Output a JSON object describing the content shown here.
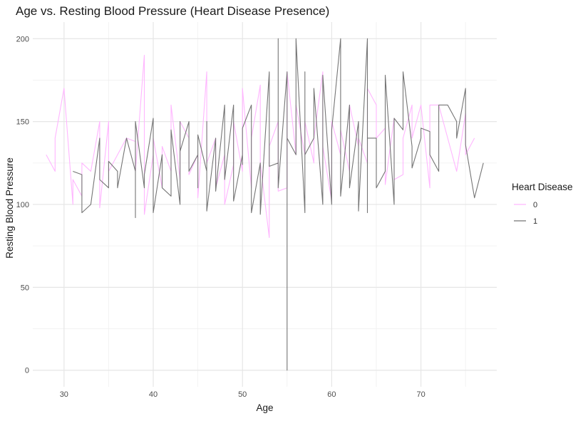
{
  "chart_data": {
    "type": "line",
    "title": "Age vs. Resting Blood Pressure (Heart Disease Presence)",
    "xlabel": "Age",
    "ylabel": "Resting Blood Pressure",
    "xlim": [
      26.5,
      78.5
    ],
    "ylim": [
      -10,
      210
    ],
    "xticks": [
      30,
      40,
      50,
      60,
      70
    ],
    "yticks": [
      0,
      50,
      100,
      150,
      200
    ],
    "grid": true,
    "legend": {
      "title": "Heart Disease",
      "position": "right"
    },
    "series": [
      {
        "name": "0",
        "color": "#ffb6ff",
        "points": [
          [
            28,
            130
          ],
          [
            29,
            120
          ],
          [
            29,
            140
          ],
          [
            30,
            170
          ],
          [
            31,
            100
          ],
          [
            31,
            115
          ],
          [
            32,
            105
          ],
          [
            32,
            125
          ],
          [
            33,
            120
          ],
          [
            34,
            150
          ],
          [
            34,
            98
          ],
          [
            35,
            150
          ],
          [
            35,
            120
          ],
          [
            36,
            130
          ],
          [
            37,
            140
          ],
          [
            38,
            138
          ],
          [
            38,
            120
          ],
          [
            39,
            190
          ],
          [
            39,
            94
          ],
          [
            40,
            130
          ],
          [
            40,
            140
          ],
          [
            41,
            110
          ],
          [
            41,
            135
          ],
          [
            42,
            120
          ],
          [
            42,
            160
          ],
          [
            43,
            115
          ],
          [
            43,
            150
          ],
          [
            44,
            140
          ],
          [
            44,
            118
          ],
          [
            45,
            130
          ],
          [
            45,
            104
          ],
          [
            46,
            180
          ],
          [
            46,
            125
          ],
          [
            47,
            140
          ],
          [
            47,
            110
          ],
          [
            48,
            130
          ],
          [
            48,
            100
          ],
          [
            49,
            124
          ],
          [
            49,
            150
          ],
          [
            50,
            120
          ],
          [
            50,
            170
          ],
          [
            51,
            110
          ],
          [
            51,
            140
          ],
          [
            52,
            172
          ],
          [
            52,
            125
          ],
          [
            53,
            80
          ],
          [
            53,
            135
          ],
          [
            54,
            150
          ],
          [
            54,
            108
          ],
          [
            55,
            110
          ],
          [
            55,
            180
          ],
          [
            56,
            130
          ],
          [
            56,
            160
          ],
          [
            57,
            130
          ],
          [
            57,
            150
          ],
          [
            58,
            125
          ],
          [
            58,
            140
          ],
          [
            59,
            180
          ],
          [
            59,
            135
          ],
          [
            60,
            102
          ],
          [
            60,
            150
          ],
          [
            61,
            130
          ],
          [
            61,
            145
          ],
          [
            62,
            120
          ],
          [
            62,
            160
          ],
          [
            63,
            135
          ],
          [
            63,
            140
          ],
          [
            64,
            125
          ],
          [
            64,
            170
          ],
          [
            65,
            160
          ],
          [
            65,
            140
          ],
          [
            66,
            146
          ],
          [
            66,
            112
          ],
          [
            67,
            152
          ],
          [
            67,
            115
          ],
          [
            68,
            118
          ],
          [
            68,
            140
          ],
          [
            69,
            160
          ],
          [
            69,
            140
          ],
          [
            70,
            160
          ],
          [
            71,
            110
          ],
          [
            71,
            160
          ],
          [
            72,
            160
          ],
          [
            74,
            120
          ],
          [
            75,
            155
          ],
          [
            75,
            130
          ],
          [
            76,
            140
          ]
        ]
      },
      {
        "name": "1",
        "color": "#757575",
        "points": [
          [
            31,
            120
          ],
          [
            32,
            118
          ],
          [
            32,
            95
          ],
          [
            33,
            100
          ],
          [
            34,
            140
          ],
          [
            34,
            115
          ],
          [
            35,
            110
          ],
          [
            35,
            126
          ],
          [
            36,
            120
          ],
          [
            36,
            110
          ],
          [
            37,
            140
          ],
          [
            38,
            120
          ],
          [
            38,
            92
          ],
          [
            38,
            150
          ],
          [
            39,
            110
          ],
          [
            39,
            118
          ],
          [
            40,
            152
          ],
          [
            40,
            95
          ],
          [
            41,
            130
          ],
          [
            41,
            110
          ],
          [
            42,
            105
          ],
          [
            42,
            145
          ],
          [
            43,
            100
          ],
          [
            43,
            150
          ],
          [
            43,
            132
          ],
          [
            44,
            150
          ],
          [
            44,
            120
          ],
          [
            45,
            130
          ],
          [
            45,
            110
          ],
          [
            45,
            142
          ],
          [
            46,
            120
          ],
          [
            46,
            150
          ],
          [
            46,
            96
          ],
          [
            47,
            140
          ],
          [
            47,
            108
          ],
          [
            48,
            160
          ],
          [
            48,
            115
          ],
          [
            49,
            160
          ],
          [
            49,
            102
          ],
          [
            50,
            130
          ],
          [
            50,
            124
          ],
          [
            50,
            146
          ],
          [
            51,
            160
          ],
          [
            51,
            95
          ],
          [
            52,
            125
          ],
          [
            52,
            94
          ],
          [
            53,
            180
          ],
          [
            53,
            123
          ],
          [
            54,
            125
          ],
          [
            54,
            200
          ],
          [
            54,
            110
          ],
          [
            55,
            180
          ],
          [
            55,
            0
          ],
          [
            55,
            140
          ],
          [
            56,
            130
          ],
          [
            56,
            200
          ],
          [
            57,
            95
          ],
          [
            57,
            180
          ],
          [
            57,
            130
          ],
          [
            58,
            140
          ],
          [
            58,
            170
          ],
          [
            59,
            100
          ],
          [
            59,
            178
          ],
          [
            60,
            100
          ],
          [
            60,
            145
          ],
          [
            61,
            200
          ],
          [
            61,
            105
          ],
          [
            62,
            160
          ],
          [
            62,
            110
          ],
          [
            63,
            150
          ],
          [
            63,
            96
          ],
          [
            64,
            200
          ],
          [
            64,
            95
          ],
          [
            64,
            140
          ],
          [
            65,
            140
          ],
          [
            65,
            110
          ],
          [
            66,
            120
          ],
          [
            66,
            178
          ],
          [
            67,
            100
          ],
          [
            67,
            152
          ],
          [
            68,
            145
          ],
          [
            68,
            180
          ],
          [
            69,
            135
          ],
          [
            69,
            122
          ],
          [
            70,
            140
          ],
          [
            70,
            146
          ],
          [
            71,
            144
          ],
          [
            71,
            130
          ],
          [
            72,
            120
          ],
          [
            72,
            160
          ],
          [
            73,
            160
          ],
          [
            74,
            150
          ],
          [
            74,
            140
          ],
          [
            75,
            170
          ],
          [
            75,
            136
          ],
          [
            76,
            104
          ],
          [
            77,
            125
          ]
        ]
      }
    ]
  }
}
